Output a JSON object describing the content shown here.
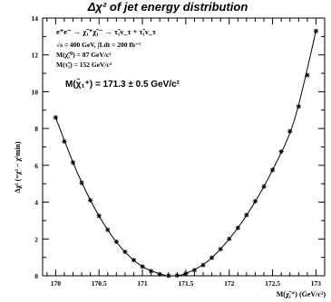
{
  "chart_data": {
    "type": "scatter",
    "title": "Δχ² of jet energy distribution",
    "xlabel": "M(χ̃₁⁺) (GeV/c²)",
    "ylabel": "Δχ² (=χ² − χ²min)",
    "xlim": [
      169.85,
      173.1
    ],
    "ylim": [
      0,
      14
    ],
    "xticks": [
      170,
      170.5,
      171,
      171.5,
      172,
      172.5,
      173
    ],
    "xtick_labels": [
      "170",
      "170.5",
      "171",
      "171.5",
      "172",
      "172.5",
      "173"
    ],
    "yticks": [
      0,
      2,
      4,
      6,
      8,
      10,
      12,
      14
    ],
    "ytick_labels": [
      "0",
      "2",
      "4",
      "6",
      "8",
      "10",
      "12",
      "14"
    ],
    "grid": false,
    "annotations": {
      "process": "e⁺e⁻ → χ̃₁⁺χ̃₁⁻ → τ̃₁ν_τ + τ̃₁ν_τ",
      "energy": "√s = 400 GeV, ∫Ldt = 200 fb⁻¹",
      "mass_chargino": "M(χ̃₁⁰) = 87 GeV/c²",
      "mass_stau": "M(τ̃₁) = 152 GeV/c²",
      "result": "M(χ̃₁⁺) = 171.3 ± 0.5 GeV/c²"
    },
    "series": [
      {
        "style": "star-markers",
        "x": [
          170.0,
          170.1,
          170.2,
          170.3,
          170.4,
          170.5,
          170.6,
          170.7,
          170.8,
          170.9,
          171.0,
          171.1,
          171.2,
          171.3,
          171.4,
          171.5,
          171.6,
          171.7,
          171.8,
          171.9,
          172.0,
          172.1,
          172.2,
          172.3,
          172.4,
          172.5,
          172.6,
          172.7,
          172.8,
          172.9,
          173.0
        ],
        "y": [
          8.6,
          7.3,
          6.15,
          5.05,
          4.1,
          3.25,
          2.5,
          1.85,
          1.3,
          0.85,
          0.5,
          0.25,
          0.08,
          0.0,
          0.02,
          0.12,
          0.3,
          0.58,
          0.98,
          1.45,
          2.0,
          2.6,
          3.3,
          4.05,
          4.85,
          5.75,
          6.75,
          7.85,
          9.2,
          10.9,
          13.3
        ]
      },
      {
        "style": "smooth-fit-curve",
        "x": [
          170.0,
          170.25,
          170.5,
          170.75,
          171.0,
          171.25,
          171.35,
          171.5,
          171.75,
          172.0,
          172.25,
          172.5,
          172.75,
          173.0
        ],
        "y": [
          8.6,
          5.6,
          3.25,
          1.55,
          0.5,
          0.04,
          0.0,
          0.12,
          0.78,
          2.0,
          3.65,
          5.75,
          8.45,
          13.3
        ]
      }
    ]
  }
}
